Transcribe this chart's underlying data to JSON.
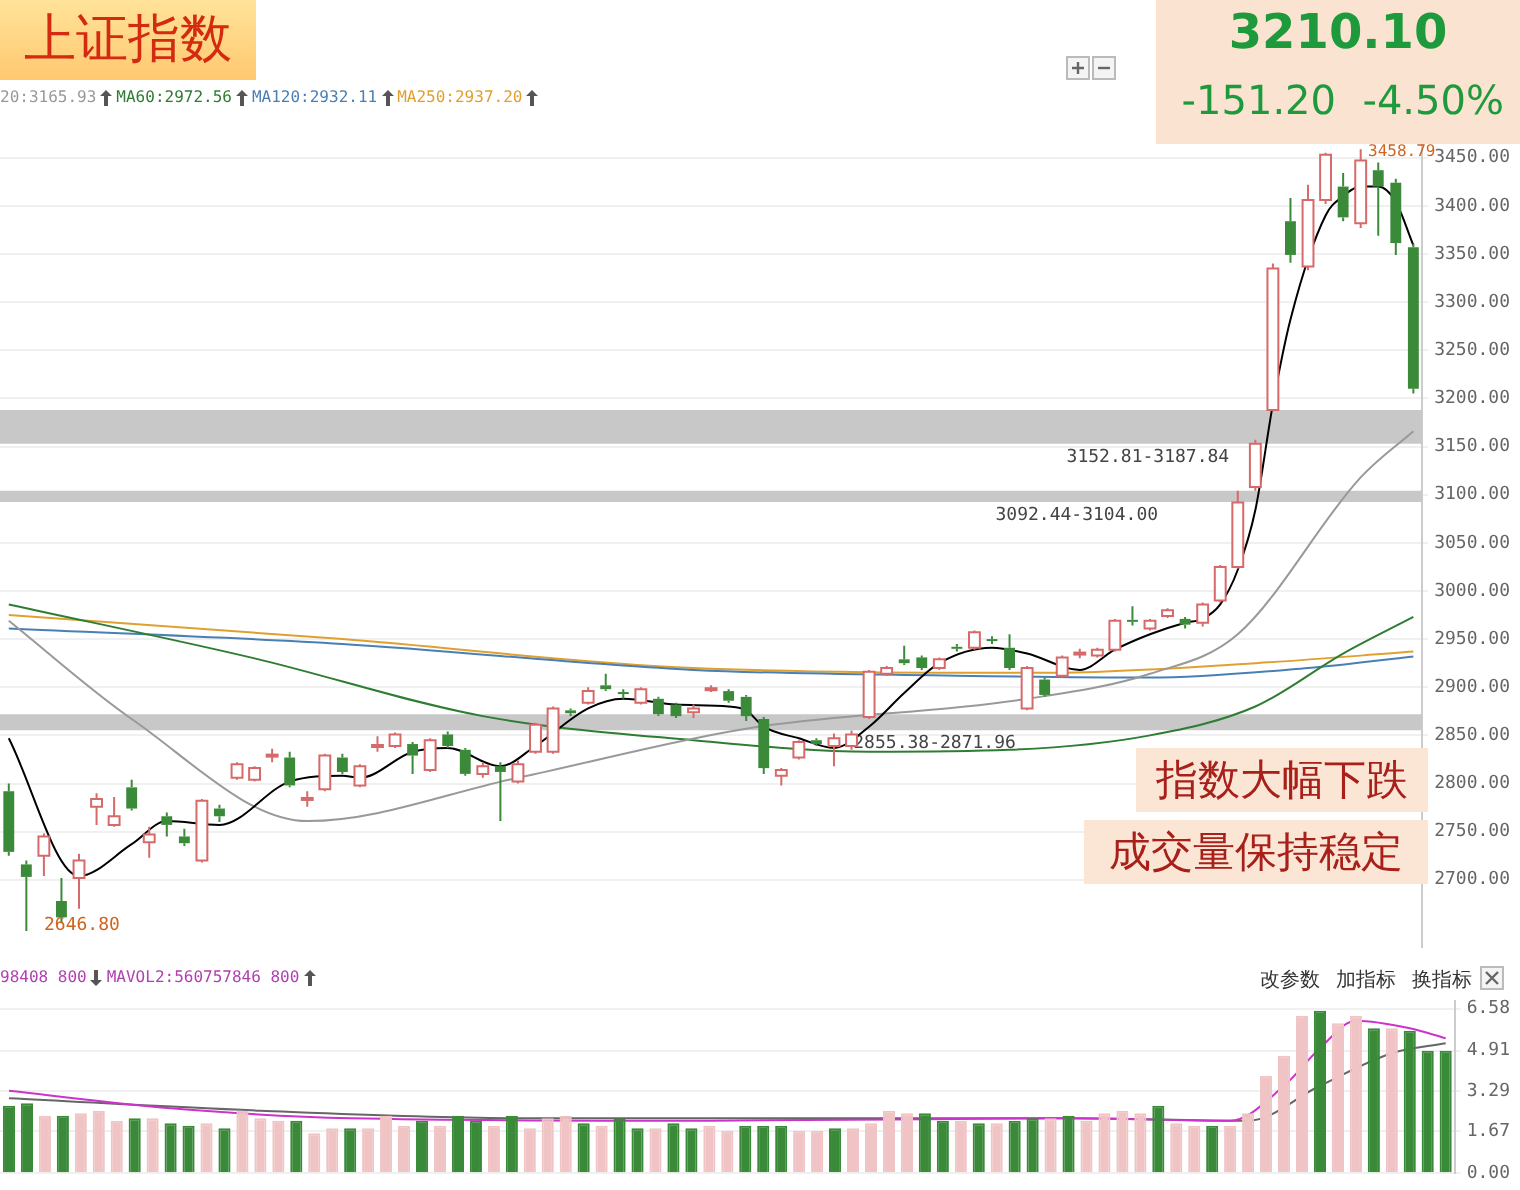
{
  "chart_data": [
    {
      "type": "candlestick",
      "title": "上证指数",
      "categories": [
        null,
        null,
        null,
        null,
        null,
        null,
        null,
        null,
        null,
        null,
        null,
        null,
        null,
        null,
        null,
        null,
        null,
        null,
        null,
        null,
        null,
        null,
        null,
        null,
        null,
        null,
        null,
        null,
        null,
        null,
        null,
        null,
        null,
        null,
        null,
        null,
        null,
        null,
        null,
        null,
        null,
        null,
        null,
        null,
        null,
        null,
        null,
        null,
        null,
        null,
        null,
        null,
        null,
        null,
        null,
        null,
        null,
        null,
        null,
        null,
        null,
        null,
        null,
        null,
        null,
        null,
        null,
        null,
        null,
        null,
        null,
        null,
        null,
        null,
        null,
        null,
        null,
        null,
        null,
        null,
        null
      ],
      "ohlc": [
        [
          2792,
          2800,
          2725,
          2729
        ],
        [
          2716,
          2720,
          2646.8,
          2703
        ],
        [
          2725,
          2748,
          2704,
          2745
        ],
        [
          2678,
          2702,
          2655,
          2661
        ],
        [
          2702,
          2727,
          2670,
          2720
        ],
        [
          2776,
          2790,
          2757,
          2784
        ],
        [
          2757,
          2786,
          2755,
          2766
        ],
        [
          2796,
          2804,
          2772,
          2774
        ],
        [
          2739,
          2755,
          2723,
          2747
        ],
        [
          2766,
          2770,
          2745,
          2757
        ],
        [
          2745,
          2753,
          2735,
          2738
        ],
        [
          2720,
          2784,
          2718,
          2782
        ],
        [
          2774,
          2778,
          2760,
          2766
        ],
        [
          2806,
          2822,
          2804,
          2820
        ],
        [
          2804,
          2818,
          2802,
          2816
        ],
        [
          2828,
          2836,
          2822,
          2830
        ],
        [
          2827,
          2833,
          2796,
          2798
        ],
        [
          2783,
          2792,
          2776,
          2785
        ],
        [
          2794,
          2831,
          2792,
          2829
        ],
        [
          2827,
          2831,
          2810,
          2812
        ],
        [
          2798,
          2820,
          2796,
          2818
        ],
        [
          2838,
          2849,
          2833,
          2840
        ],
        [
          2839,
          2853,
          2837,
          2851
        ],
        [
          2841,
          2843,
          2810,
          2829
        ],
        [
          2814,
          2847,
          2812,
          2845
        ],
        [
          2851,
          2854,
          2837,
          2839
        ],
        [
          2835,
          2837,
          2808,
          2810
        ],
        [
          2810,
          2822,
          2806,
          2818
        ],
        [
          2818,
          2822,
          2761,
          2812
        ],
        [
          2802,
          2824,
          2800,
          2820
        ],
        [
          2833,
          2863,
          2831,
          2861
        ],
        [
          2833,
          2880,
          2831,
          2878
        ],
        [
          2876,
          2878,
          2870,
          2873
        ],
        [
          2884,
          2900,
          2882,
          2896
        ],
        [
          2902,
          2914,
          2896,
          2898
        ],
        [
          2895,
          2898,
          2888,
          2893
        ],
        [
          2884,
          2900,
          2882,
          2898
        ],
        [
          2888,
          2890,
          2870,
          2872
        ],
        [
          2882,
          2884,
          2868,
          2870
        ],
        [
          2874,
          2882,
          2868,
          2878
        ],
        [
          2897,
          2902,
          2895,
          2899
        ],
        [
          2896,
          2898,
          2884,
          2886
        ],
        [
          2890,
          2892,
          2865,
          2870
        ],
        [
          2867,
          2869,
          2810,
          2816
        ],
        [
          2808,
          2816,
          2798,
          2814
        ],
        [
          2827,
          2845,
          2825,
          2843
        ],
        [
          2845,
          2847,
          2839,
          2841
        ],
        [
          2839,
          2852,
          2818,
          2847
        ],
        [
          2839,
          2855,
          2835,
          2851
        ],
        [
          2869,
          2918,
          2867,
          2916
        ],
        [
          2914,
          2922,
          2912,
          2920
        ],
        [
          2929,
          2943,
          2923,
          2925
        ],
        [
          2931,
          2933,
          2918,
          2920
        ],
        [
          2920,
          2931,
          2918,
          2929
        ],
        [
          2942,
          2945,
          2937,
          2940
        ],
        [
          2941,
          2959,
          2939,
          2957
        ],
        [
          2950,
          2953,
          2945,
          2948
        ],
        [
          2941,
          2955,
          2918,
          2920
        ],
        [
          2878,
          2922,
          2876,
          2920
        ],
        [
          2908,
          2910,
          2890,
          2892
        ],
        [
          2912,
          2933,
          2910,
          2931
        ],
        [
          2934,
          2940,
          2930,
          2936
        ],
        [
          2933,
          2941,
          2931,
          2939
        ],
        [
          2939,
          2971,
          2937,
          2969
        ],
        [
          2970,
          2984,
          2964,
          2968
        ],
        [
          2961,
          2971,
          2959,
          2969
        ],
        [
          2974,
          2982,
          2972,
          2980
        ],
        [
          2971,
          2973,
          2961,
          2965
        ],
        [
          2967,
          2988,
          2963,
          2986
        ],
        [
          2990,
          3027,
          2988,
          3025
        ],
        [
          3025,
          3104,
          3023,
          3092
        ],
        [
          3108,
          3157,
          3104,
          3153
        ],
        [
          3188,
          3340,
          3187,
          3335
        ],
        [
          3384,
          3408,
          3341,
          3349
        ],
        [
          3337,
          3422,
          3333,
          3406
        ],
        [
          3406,
          3455,
          3402,
          3453
        ],
        [
          3420,
          3434,
          3384,
          3388
        ],
        [
          3382,
          3458.79,
          3377,
          3447
        ],
        [
          3437,
          3445,
          3369,
          3420
        ],
        [
          3424,
          3428,
          3349,
          3361.3
        ],
        [
          3357,
          3361,
          3205,
          3210.1
        ]
      ],
      "series": [
        {
          "type": "line",
          "color": "#000000",
          "values": [
            2847,
            null,
            null,
            null,
            2704,
            null,
            null,
            2737,
            null,
            2761,
            null,
            null,
            2757,
            null,
            null,
            null,
            2802,
            null,
            null,
            2808,
            2806,
            null,
            null,
            2833,
            null,
            2837,
            null,
            null,
            2818,
            null,
            2839,
            null,
            null,
            2878,
            null,
            2888,
            null,
            null,
            2882,
            null,
            null,
            2880,
            2876,
            2859,
            null,
            2847,
            null,
            2837,
            null,
            2859,
            null,
            2894,
            null,
            2925,
            null,
            null,
            2941,
            null,
            2935,
            null,
            null,
            2918,
            null,
            2939,
            null,
            2955,
            null,
            2967,
            2971,
            2986,
            3022,
            3084,
            3194,
            3282,
            null,
            3390,
            3410,
            3420,
            3420,
            3404,
            3359
          ]
        },
        {
          "type": "line",
          "name": "20:3165.93",
          "color": "#999999",
          "values": [
            2969,
            null,
            null,
            null,
            null,
            null,
            null,
            2867,
            null,
            null,
            null,
            null,
            null,
            null,
            null,
            null,
            null,
            2761,
            null,
            null,
            null,
            null,
            null,
            null,
            null,
            null,
            null,
            null,
            null,
            2806,
            null,
            null,
            null,
            null,
            null,
            null,
            null,
            null,
            null,
            null,
            null,
            null,
            2857,
            null,
            null,
            null,
            null,
            null,
            null,
            null,
            null,
            null,
            null,
            null,
            null,
            null,
            null,
            null,
            2888,
            null,
            null,
            null,
            null,
            null,
            null,
            2914,
            null,
            null,
            null,
            null,
            2955,
            null,
            null,
            null,
            null,
            null,
            null,
            3118,
            null,
            null,
            3166
          ]
        },
        {
          "type": "line",
          "name": "MA60:2972.56",
          "color": "#2e7d32",
          "values": [
            2986,
            null,
            null,
            null,
            null,
            null,
            null,
            null,
            null,
            null,
            null,
            null,
            null,
            null,
            2930,
            null,
            null,
            null,
            null,
            null,
            null,
            null,
            null,
            null,
            null,
            null,
            null,
            2870,
            null,
            null,
            null,
            null,
            null,
            null,
            null,
            null,
            null,
            null,
            null,
            2845,
            null,
            null,
            null,
            null,
            null,
            null,
            null,
            null,
            null,
            2833,
            null,
            null,
            null,
            null,
            null,
            null,
            null,
            2835,
            null,
            null,
            null,
            null,
            null,
            null,
            null,
            2850,
            null,
            null,
            null,
            null,
            null,
            2880,
            null,
            null,
            null,
            null,
            2935,
            null,
            null,
            null,
            2973
          ]
        },
        {
          "type": "line",
          "name": "MA120:2932.11",
          "color": "#4a7fb5",
          "values": [
            2961,
            null,
            null,
            null,
            null,
            null,
            null,
            null,
            null,
            null,
            null,
            null,
            null,
            null,
            null,
            null,
            null,
            null,
            null,
            2945,
            null,
            null,
            null,
            null,
            null,
            null,
            null,
            null,
            null,
            null,
            null,
            null,
            null,
            null,
            null,
            null,
            null,
            null,
            null,
            2918,
            null,
            null,
            null,
            null,
            null,
            null,
            null,
            null,
            null,
            null,
            null,
            null,
            null,
            null,
            2912,
            null,
            null,
            null,
            null,
            null,
            null,
            null,
            null,
            null,
            null,
            2910,
            null,
            null,
            null,
            null,
            null,
            null,
            null,
            null,
            2920,
            null,
            null,
            null,
            null,
            null,
            2932
          ]
        },
        {
          "type": "line",
          "name": "MA250:2937.20",
          "color": "#e0a030",
          "values": [
            2975,
            null,
            null,
            null,
            null,
            null,
            null,
            null,
            null,
            null,
            null,
            null,
            null,
            null,
            null,
            null,
            null,
            null,
            null,
            2950,
            null,
            null,
            null,
            null,
            null,
            null,
            null,
            null,
            null,
            null,
            null,
            null,
            null,
            null,
            null,
            null,
            null,
            null,
            null,
            2920,
            null,
            null,
            null,
            null,
            null,
            null,
            null,
            null,
            null,
            null,
            null,
            null,
            null,
            null,
            null,
            null,
            null,
            null,
            null,
            2915,
            null,
            null,
            null,
            null,
            null,
            null,
            null,
            null,
            null,
            null,
            null,
            2925,
            null,
            null,
            null,
            null,
            null,
            null,
            null,
            null,
            2937
          ]
        }
      ],
      "ylim": [
        2630,
        3480
      ],
      "yticks": [
        {
          "value": 2700,
          "label": "2700.00"
        },
        {
          "value": 2750,
          "label": "2750.00"
        },
        {
          "value": 2800,
          "label": "2800.00"
        },
        {
          "value": 2850,
          "label": "2850.00"
        },
        {
          "value": 2900,
          "label": "2900.00"
        },
        {
          "value": 2950,
          "label": "2950.00"
        },
        {
          "value": 3000,
          "label": "3000.00"
        },
        {
          "value": 3050,
          "label": "3050.00"
        },
        {
          "value": 3100,
          "label": "3100.00"
        },
        {
          "value": 3150,
          "label": "3150.00"
        },
        {
          "value": 3200,
          "label": "3200.00"
        },
        {
          "value": 3250,
          "label": "3250.00"
        },
        {
          "value": 3300,
          "label": "3300.00"
        },
        {
          "value": 3350,
          "label": "3350.00"
        },
        {
          "value": 3400,
          "label": "3400.00"
        },
        {
          "value": 3450,
          "label": "3450.00"
        }
      ],
      "bands": [
        {
          "axis": "y",
          "from": 2855.38,
          "to": 2871.96,
          "label": "2855.38-2871.96",
          "color": "#c8c8c8"
        },
        {
          "axis": "y",
          "from": 3092.44,
          "to": 3104.0,
          "label": "3092.44-3104.00",
          "color": "#c8c8c8"
        },
        {
          "axis": "y",
          "from": 3152.81,
          "to": 3187.84,
          "label": "3152.81-3187.84",
          "color": "#c8c8c8"
        }
      ],
      "annotations": [
        "3210.10",
        "-151.20",
        "-4.50%",
        "指数大幅下跌",
        "成交量保持稳定",
        "2646.80",
        "3458.79"
      ],
      "grid": "y",
      "legend": "top left",
      "tick_labels": "y",
      "marker": "none"
    },
    {
      "type": "bar",
      "categories": [
        null,
        null,
        null,
        null,
        null,
        null,
        null,
        null,
        null,
        null,
        null,
        null,
        null,
        null,
        null,
        null,
        null,
        null,
        null,
        null,
        null,
        null,
        null,
        null,
        null,
        null,
        null,
        null,
        null,
        null,
        null,
        null,
        null,
        null,
        null,
        null,
        null,
        null,
        null,
        null,
        null,
        null,
        null,
        null,
        null,
        null,
        null,
        null,
        null,
        null,
        null,
        null,
        null,
        null,
        null,
        null,
        null,
        null,
        null,
        null,
        null,
        null,
        null,
        null,
        null,
        null,
        null,
        null,
        null,
        null,
        null,
        null,
        null,
        null,
        null,
        null,
        null,
        null,
        null,
        null,
        null
      ],
      "series": [
        {
          "type": "bar",
          "values": [
            2.7,
            2.8,
            2.3,
            2.3,
            2.4,
            2.5,
            2.1,
            2.2,
            2.2,
            2.0,
            1.9,
            2.0,
            1.8,
            2.5,
            2.2,
            2.1,
            2.1,
            1.6,
            1.8,
            1.8,
            1.8,
            2.3,
            1.9,
            2.1,
            1.9,
            2.3,
            2.1,
            1.9,
            2.3,
            1.8,
            2.2,
            2.3,
            2.0,
            1.9,
            2.2,
            1.8,
            1.8,
            2.0,
            1.8,
            1.9,
            1.7,
            1.9,
            1.9,
            1.9,
            1.7,
            1.7,
            1.8,
            1.8,
            2.0,
            2.5,
            2.4,
            2.4,
            2.1,
            2.1,
            2.0,
            2.0,
            2.1,
            2.2,
            2.2,
            2.3,
            2.1,
            2.4,
            2.5,
            2.4,
            2.7,
            2.0,
            1.9,
            1.9,
            1.9,
            2.4,
            3.9,
            4.7,
            6.3,
            6.5,
            6.0,
            6.3,
            5.8,
            5.8,
            5.7,
            4.9,
            4.9
          ],
          "colors": [
            "#3a8a3a",
            "#3a8a3a",
            "#f0c4c4",
            "#3a8a3a",
            "#f0c4c4",
            "#f0c4c4",
            "#f0c4c4",
            "#3a8a3a",
            "#f0c4c4",
            "#3a8a3a",
            "#3a8a3a",
            "#f0c4c4",
            "#3a8a3a",
            "#f0c4c4",
            "#f0c4c4",
            "#f0c4c4",
            "#3a8a3a",
            "#f0c4c4",
            "#f0c4c4",
            "#3a8a3a",
            "#f0c4c4",
            "#f0c4c4",
            "#f0c4c4",
            "#3a8a3a",
            "#f0c4c4",
            "#3a8a3a",
            "#3a8a3a",
            "#f0c4c4",
            "#3a8a3a",
            "#f0c4c4",
            "#f0c4c4",
            "#f0c4c4",
            "#3a8a3a",
            "#f0c4c4",
            "#3a8a3a",
            "#3a8a3a",
            "#f0c4c4",
            "#3a8a3a",
            "#3a8a3a",
            "#f0c4c4",
            "#f0c4c4",
            "#3a8a3a",
            "#3a8a3a",
            "#3a8a3a",
            "#f0c4c4",
            "#f0c4c4",
            "#3a8a3a",
            "#f0c4c4",
            "#f0c4c4",
            "#f0c4c4",
            "#f0c4c4",
            "#3a8a3a",
            "#3a8a3a",
            "#f0c4c4",
            "#3a8a3a",
            "#f0c4c4",
            "#3a8a3a",
            "#3a8a3a",
            "#f0c4c4",
            "#3a8a3a",
            "#f0c4c4",
            "#f0c4c4",
            "#f0c4c4",
            "#f0c4c4",
            "#3a8a3a",
            "#f0c4c4",
            "#f0c4c4",
            "#3a8a3a",
            "#f0c4c4",
            "#f0c4c4",
            "#f0c4c4",
            "#f0c4c4",
            "#f0c4c4",
            "#3a8a3a",
            "#f0c4c4",
            "#f0c4c4",
            "#3a8a3a",
            "#f0c4c4",
            "#3a8a3a",
            "#3a8a3a",
            "#3a8a3a"
          ]
        },
        {
          "type": "line",
          "color": "#cc33cc",
          "values": [
            3.3,
            null,
            null,
            null,
            null,
            null,
            null,
            null,
            null,
            2.6,
            null,
            null,
            null,
            null,
            null,
            null,
            null,
            null,
            null,
            2.2,
            null,
            null,
            null,
            null,
            null,
            null,
            null,
            null,
            null,
            null,
            null,
            null,
            null,
            null,
            null,
            null,
            null,
            null,
            null,
            2.1,
            null,
            null,
            null,
            null,
            null,
            null,
            null,
            null,
            null,
            null,
            null,
            null,
            null,
            null,
            null,
            null,
            null,
            null,
            null,
            2.2,
            null,
            null,
            null,
            null,
            null,
            null,
            null,
            null,
            2.1,
            null,
            null,
            3.5,
            null,
            5.0,
            null,
            6.1,
            null,
            null,
            5.8,
            null,
            5.4
          ]
        },
        {
          "type": "line",
          "color": "#666666",
          "values": [
            3.0,
            null,
            null,
            null,
            null,
            null,
            null,
            null,
            null,
            null,
            null,
            null,
            null,
            null,
            2.5,
            null,
            null,
            null,
            null,
            null,
            null,
            null,
            null,
            null,
            null,
            null,
            null,
            null,
            null,
            2.2,
            null,
            null,
            null,
            null,
            null,
            null,
            null,
            null,
            null,
            null,
            null,
            null,
            null,
            null,
            null,
            null,
            null,
            null,
            null,
            null,
            null,
            null,
            null,
            null,
            null,
            null,
            null,
            null,
            null,
            2.2,
            null,
            null,
            null,
            null,
            null,
            null,
            null,
            null,
            null,
            2.1,
            null,
            null,
            null,
            3.5,
            null,
            null,
            null,
            4.8,
            null,
            null,
            5.2
          ]
        }
      ],
      "ylim": [
        0,
        6.9
      ],
      "yticks": [
        {
          "value": 0,
          "label": "0.00"
        },
        {
          "value": 1.67,
          "label": "1.67"
        },
        {
          "value": 3.29,
          "label": "3.29"
        },
        {
          "value": 4.91,
          "label": "4.91"
        },
        {
          "value": 6.58,
          "label": "6.58"
        }
      ],
      "annotations": [
        "98408 800",
        "MAVOL2:560757846 800",
        "改参数",
        "加指标",
        "换指标"
      ],
      "grid": "y",
      "tick_labels": "y",
      "marker": "none"
    }
  ]
}
